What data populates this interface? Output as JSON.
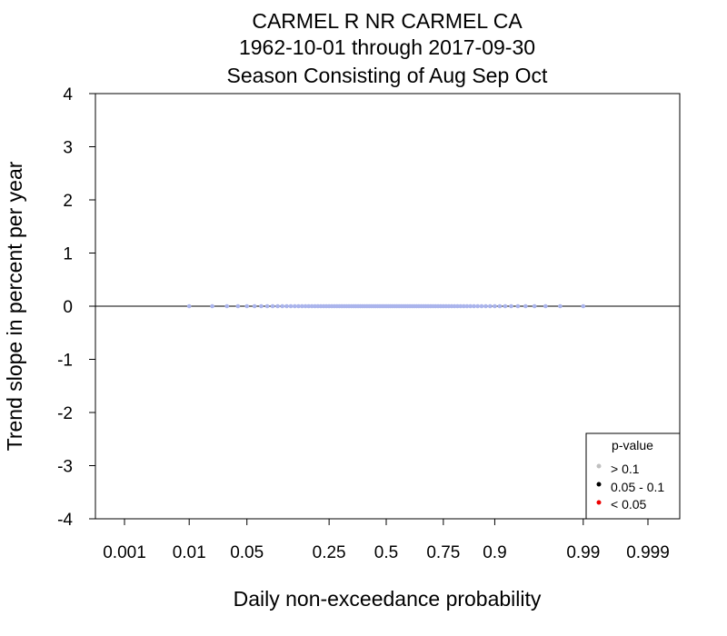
{
  "chart_data": {
    "type": "scatter",
    "title": [
      "CARMEL R NR CARMEL CA",
      "1962-10-01 through 2017-09-30",
      "Season Consisting of Aug Sep Oct"
    ],
    "xlabel": "Daily non-exceedance probability",
    "ylabel": "Trend slope in percent per year",
    "x_scale": "probability (normal quantile)",
    "x_ticks": [
      0.001,
      0.01,
      0.05,
      0.25,
      0.5,
      0.75,
      0.9,
      0.99,
      0.999
    ],
    "x_tick_labels": [
      "0.001",
      "0.01",
      "0.05",
      "0.25",
      "0.5",
      "0.75",
      "0.9",
      "0.99",
      "0.999"
    ],
    "ylim": [
      -4,
      4
    ],
    "y_ticks": [
      4,
      3,
      2,
      1,
      0,
      -1,
      -2,
      -3,
      -4
    ],
    "y_tick_labels": [
      "4",
      "3",
      "2",
      "1",
      "0",
      "-1",
      "-2",
      "-3",
      "-4"
    ],
    "reference_line_y": 0,
    "grid": false,
    "legend": {
      "title": "p-value",
      "position": "bottom-right",
      "entries": [
        {
          "label": "> 0.1",
          "color": "#c0c0c0"
        },
        {
          "label": "0.05 - 0.1",
          "color": "#000000"
        },
        {
          "label": "< 0.05",
          "color": "#ee0000"
        }
      ]
    },
    "series": [
      {
        "color": "#aab4ec",
        "x": [
          0.01,
          0.02,
          0.03,
          0.04,
          0.05,
          0.06,
          0.07,
          0.08,
          0.09,
          0.1,
          0.11,
          0.12,
          0.13,
          0.14,
          0.15,
          0.16,
          0.17,
          0.18,
          0.19,
          0.2,
          0.21,
          0.22,
          0.23,
          0.24,
          0.25,
          0.26,
          0.27,
          0.28,
          0.29,
          0.3,
          0.31,
          0.32,
          0.33,
          0.34,
          0.35,
          0.36,
          0.37,
          0.38,
          0.39,
          0.4,
          0.41,
          0.42,
          0.43,
          0.44,
          0.45,
          0.46,
          0.47,
          0.48,
          0.49,
          0.5,
          0.51,
          0.52,
          0.53,
          0.54,
          0.55,
          0.56,
          0.57,
          0.58,
          0.59,
          0.6,
          0.61,
          0.62,
          0.63,
          0.64,
          0.65,
          0.66,
          0.67,
          0.68,
          0.69,
          0.7,
          0.71,
          0.72,
          0.73,
          0.74,
          0.75,
          0.76,
          0.77,
          0.78,
          0.79,
          0.8,
          0.81,
          0.82,
          0.83,
          0.84,
          0.85,
          0.86,
          0.87,
          0.88,
          0.89,
          0.9,
          0.91,
          0.92,
          0.93,
          0.94,
          0.95,
          0.96,
          0.97,
          0.98,
          0.99
        ],
        "y": [
          0,
          0,
          0,
          0,
          0,
          0,
          0,
          0,
          0,
          0,
          0,
          0,
          0,
          0,
          0,
          0,
          0,
          0,
          0,
          0,
          0,
          0,
          0,
          0,
          0,
          0,
          0,
          0,
          0,
          0,
          0,
          0,
          0,
          0,
          0,
          0,
          0,
          0,
          0,
          0,
          0,
          0,
          0,
          0,
          0,
          0,
          0,
          0,
          0,
          0,
          0,
          0,
          0,
          0,
          0,
          0,
          0,
          0,
          0,
          0,
          0,
          0,
          0,
          0,
          0,
          0,
          0,
          0,
          0,
          0,
          0,
          0,
          0,
          0,
          0,
          0,
          0,
          0,
          0,
          0,
          0,
          0,
          0,
          0,
          0,
          0,
          0,
          0,
          0,
          0,
          0,
          0,
          0,
          0,
          0,
          0,
          0,
          0,
          0
        ]
      }
    ]
  }
}
